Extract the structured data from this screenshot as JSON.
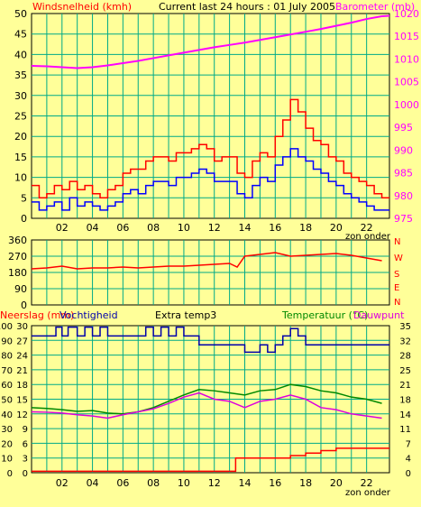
{
  "header": {
    "left_label": "Windsnelheid (kmh)",
    "center_label": "Current last 24 hours : 01 July 2005",
    "right_label": "Barometer (mb)"
  },
  "middle": {
    "right_letters": [
      "N",
      "W",
      "S",
      "E",
      "N"
    ]
  },
  "bottom_header": {
    "rain_label": "Neerslag (mm)",
    "humidity_label": "Vochtigheid",
    "extra_label": "Extra temp3",
    "temp_label": "Temperatuur (°C)",
    "dew_label": "Dauwpunt"
  },
  "footer_top": "zon onder",
  "footer_bottom": "zon onder",
  "colors": {
    "background": "#FFFF99",
    "grid": "#00AA88",
    "wind": "#0000FF",
    "gust": "#FF0000",
    "barometer": "#FF00FF",
    "direction": "#FF0000",
    "humidity": "#0000AA",
    "temperature": "#008800",
    "dewpoint": "#DD00DD",
    "rain": "#FF0000"
  },
  "chart_data": [
    {
      "type": "line",
      "name": "wind-barometer",
      "title": "Current last 24 hours : 01 July 2005",
      "xlabel": "zon onder",
      "x_ticks": [
        "02",
        "04",
        "06",
        "08",
        "10",
        "12",
        "14",
        "16",
        "18",
        "20",
        "22"
      ],
      "xlim": [
        0,
        23.5
      ],
      "left_axis": {
        "label": "Windsnelheid (kmh)",
        "ylim": [
          0,
          50
        ],
        "ticks": [
          0,
          5,
          10,
          15,
          20,
          25,
          30,
          35,
          40,
          45,
          50
        ]
      },
      "right_axis": {
        "label": "Barometer (mb)",
        "ylim": [
          975,
          1020
        ],
        "ticks": [
          975,
          980,
          985,
          990,
          995,
          1000,
          1005,
          1010,
          1015,
          1020
        ]
      },
      "series": [
        {
          "name": "Windsnelheid (kmh)",
          "axis": "left",
          "x": [
            0,
            0.5,
            1,
            1.5,
            2,
            2.5,
            3,
            3.5,
            4,
            4.5,
            5,
            5.5,
            6,
            6.5,
            7,
            7.5,
            8,
            8.5,
            9,
            9.5,
            10,
            10.5,
            11,
            11.5,
            12,
            12.5,
            13,
            13.5,
            14,
            14.5,
            15,
            15.5,
            16,
            16.5,
            17,
            17.5,
            18,
            18.5,
            19,
            19.5,
            20,
            20.5,
            21,
            21.5,
            22,
            22.5,
            23
          ],
          "values": [
            4,
            2,
            3,
            4,
            2,
            5,
            3,
            4,
            3,
            2,
            3,
            4,
            6,
            7,
            6,
            8,
            9,
            9,
            8,
            10,
            10,
            11,
            12,
            11,
            9,
            9,
            9,
            6,
            5,
            8,
            10,
            9,
            13,
            15,
            17,
            15,
            14,
            12,
            11,
            9,
            8,
            6,
            5,
            4,
            3,
            2,
            2
          ]
        },
        {
          "name": "Windstoten (kmh)",
          "axis": "left",
          "x": [
            0,
            0.5,
            1,
            1.5,
            2,
            2.5,
            3,
            3.5,
            4,
            4.5,
            5,
            5.5,
            6,
            6.5,
            7,
            7.5,
            8,
            8.5,
            9,
            9.5,
            10,
            10.5,
            11,
            11.5,
            12,
            12.5,
            13,
            13.5,
            14,
            14.5,
            15,
            15.5,
            16,
            16.5,
            17,
            17.5,
            18,
            18.5,
            19,
            19.5,
            20,
            20.5,
            21,
            21.5,
            22,
            22.5,
            23
          ],
          "values": [
            8,
            5,
            6,
            8,
            7,
            9,
            7,
            8,
            6,
            5,
            7,
            8,
            11,
            12,
            12,
            14,
            15,
            15,
            14,
            16,
            16,
            17,
            18,
            17,
            14,
            15,
            15,
            11,
            10,
            14,
            16,
            15,
            20,
            24,
            29,
            26,
            22,
            19,
            18,
            15,
            14,
            11,
            10,
            9,
            8,
            6,
            5
          ]
        },
        {
          "name": "Barometer (mb)",
          "axis": "right",
          "x": [
            0,
            1,
            2,
            3,
            4,
            5,
            6,
            7,
            8,
            9,
            10,
            11,
            12,
            13,
            14,
            15,
            16,
            17,
            18,
            19,
            20,
            21,
            22,
            23,
            23.5
          ],
          "values": [
            1008.5,
            1008.4,
            1008.2,
            1008.0,
            1008.2,
            1008.6,
            1009.1,
            1009.6,
            1010.2,
            1010.8,
            1011.4,
            1012.0,
            1012.6,
            1013.1,
            1013.6,
            1014.2,
            1014.8,
            1015.4,
            1016.0,
            1016.6,
            1017.3,
            1018.0,
            1018.8,
            1019.4,
            1019.5
          ]
        }
      ]
    },
    {
      "type": "line",
      "name": "wind-direction",
      "y_ticks": [
        0,
        90,
        180,
        270,
        360
      ],
      "ylim": [
        0,
        360
      ],
      "xlim": [
        0,
        23.5
      ],
      "series": [
        {
          "name": "Windrichting",
          "x": [
            0,
            1,
            2,
            3,
            4,
            5,
            6,
            7,
            8,
            9,
            10,
            11,
            12,
            13,
            13.5,
            14,
            15,
            16,
            17,
            18,
            19,
            20,
            21,
            22,
            23
          ],
          "values": [
            200,
            205,
            215,
            200,
            205,
            205,
            210,
            205,
            210,
            215,
            215,
            220,
            225,
            230,
            210,
            270,
            280,
            290,
            270,
            275,
            280,
            285,
            275,
            260,
            245
          ]
        }
      ]
    },
    {
      "type": "line",
      "name": "rain-humidity-temperature",
      "xlabel": "zon onder",
      "x_ticks": [
        "02",
        "04",
        "06",
        "08",
        "10",
        "12",
        "14",
        "16",
        "18",
        "20",
        "22"
      ],
      "xlim": [
        0,
        23.5
      ],
      "left_axis_rain": {
        "label": "Neerslag (mm)",
        "ylim": [
          0,
          30
        ],
        "ticks": [
          0,
          3,
          6,
          9,
          12,
          15,
          18,
          21,
          24,
          27,
          30
        ]
      },
      "left_axis_humidity": {
        "label": "Vochtigheid",
        "ylim": [
          0,
          100
        ],
        "ticks": [
          0,
          10,
          20,
          30,
          40,
          50,
          60,
          70,
          80,
          90,
          100
        ]
      },
      "right_axis": {
        "label": "Temperatuur (°C)",
        "ylim": [
          0,
          35
        ],
        "ticks": [
          0,
          4,
          7,
          11,
          14,
          18,
          21,
          25,
          28,
          32,
          35
        ]
      },
      "series": [
        {
          "name": "Vochtigheid",
          "axis": "humidity",
          "x": [
            0,
            1,
            1.6,
            2,
            2.4,
            3,
            3.5,
            4,
            4.5,
            5,
            6,
            7,
            7.5,
            8,
            8.5,
            9,
            9.5,
            10,
            10.5,
            11,
            12,
            13,
            14,
            14.5,
            15,
            15.5,
            16,
            16.5,
            17,
            17.5,
            18,
            19,
            20,
            21,
            22,
            23
          ],
          "values": [
            93,
            93,
            99,
            93,
            99,
            93,
            99,
            93,
            99,
            93,
            93,
            93,
            99,
            93,
            99,
            93,
            99,
            93,
            93,
            87,
            87,
            87,
            82,
            82,
            87,
            82,
            87,
            93,
            98,
            93,
            87,
            87,
            87,
            87,
            87,
            87
          ]
        },
        {
          "name": "Temperatuur (°C)",
          "axis": "right",
          "x": [
            0,
            1,
            2,
            3,
            4,
            5,
            6,
            7,
            8,
            9,
            10,
            11,
            12,
            13,
            14,
            15,
            16,
            17,
            18,
            19,
            20,
            21,
            22,
            23
          ],
          "values": [
            15.5,
            15.3,
            15.0,
            14.6,
            14.8,
            14.2,
            14.0,
            14.5,
            15.5,
            17.0,
            18.5,
            19.8,
            19.5,
            19.0,
            18.5,
            19.5,
            19.8,
            21.0,
            20.5,
            19.5,
            19.0,
            18.0,
            17.5,
            16.5
          ]
        },
        {
          "name": "Dauwpunt",
          "axis": "right",
          "x": [
            0,
            1,
            2,
            3,
            4,
            5,
            6,
            7,
            8,
            9,
            10,
            11,
            12,
            13,
            14,
            15,
            16,
            17,
            18,
            19,
            20,
            21,
            22,
            23
          ],
          "values": [
            14.5,
            14.4,
            14.2,
            13.8,
            13.5,
            13.0,
            13.8,
            14.5,
            15.2,
            16.5,
            18.0,
            19.0,
            17.5,
            17.0,
            15.5,
            17.0,
            17.5,
            18.5,
            17.5,
            15.5,
            15.0,
            14.0,
            13.5,
            13.0
          ]
        },
        {
          "name": "Neerslag (mm)",
          "axis": "rain",
          "x": [
            0,
            6,
            13.3,
            13.4,
            16,
            17,
            18,
            19,
            20,
            21,
            22,
            23
          ],
          "values": [
            0.3,
            0.3,
            0.3,
            3,
            3,
            3.5,
            4,
            4.5,
            5,
            5,
            5,
            5
          ]
        }
      ]
    }
  ]
}
